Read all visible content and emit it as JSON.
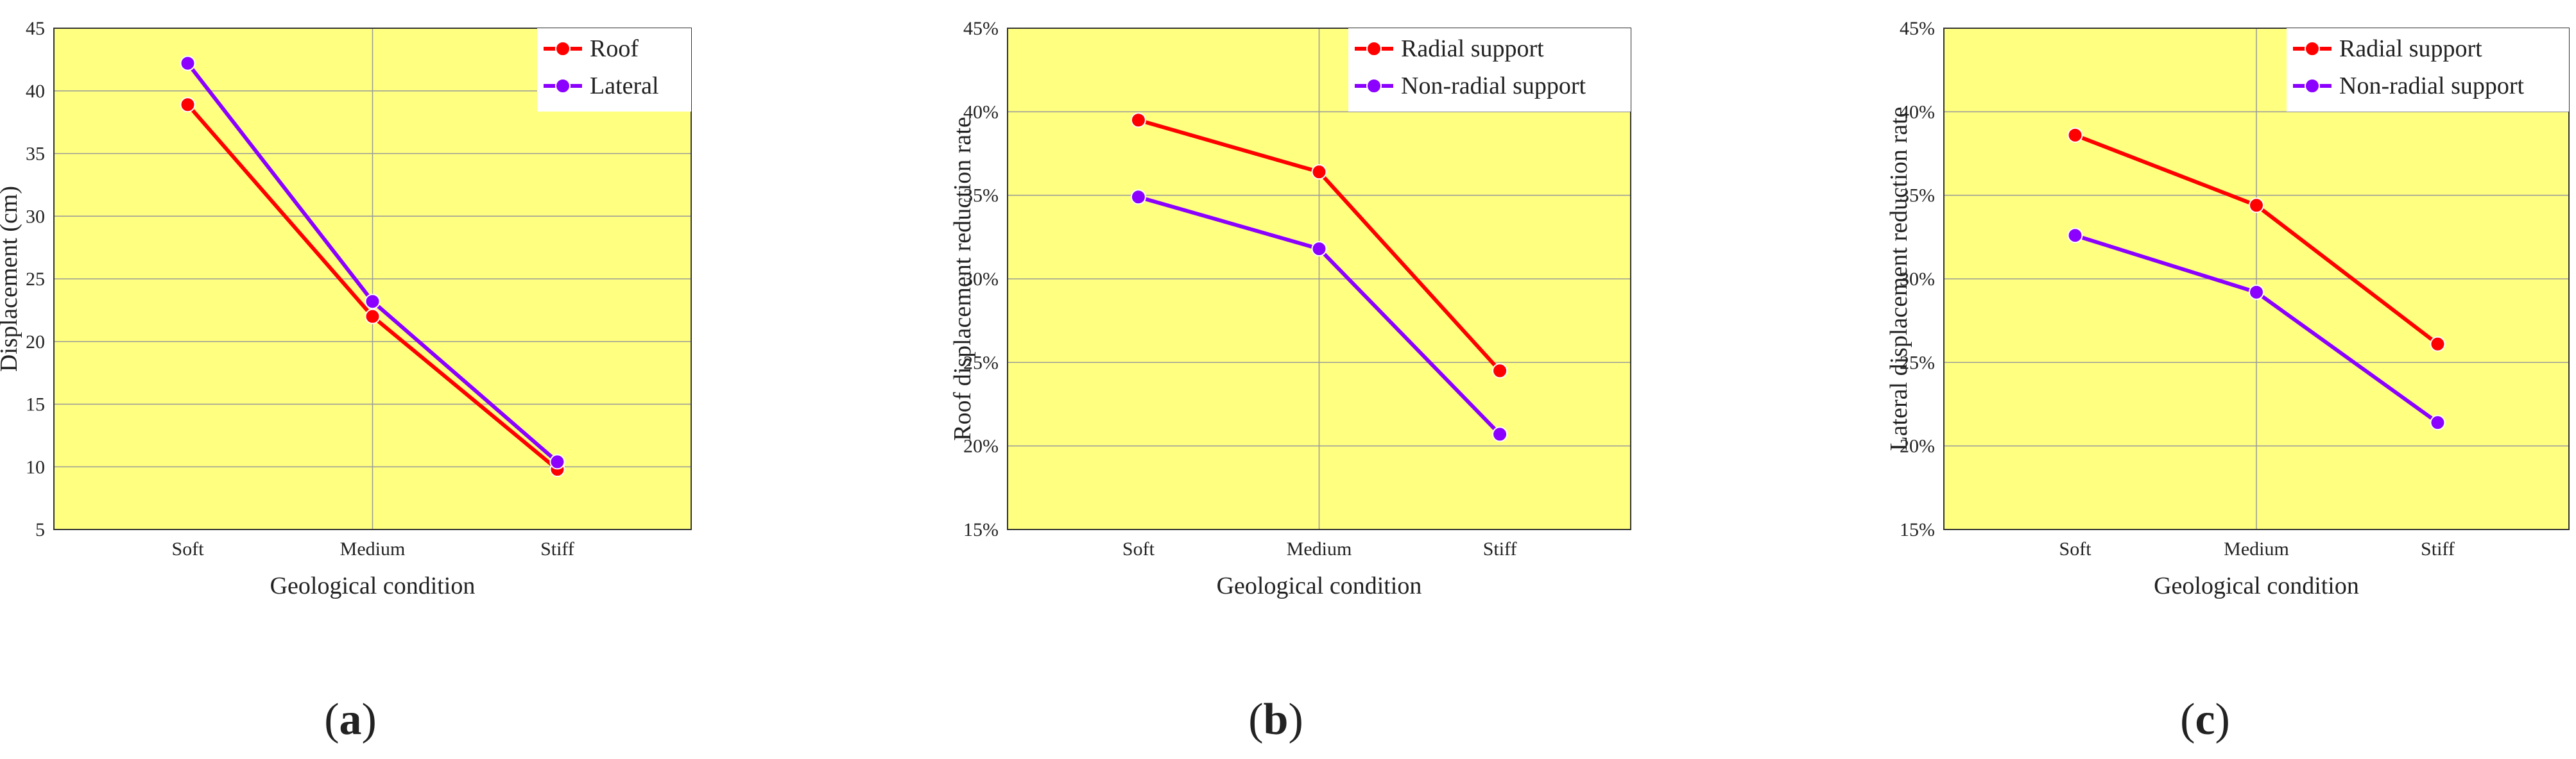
{
  "figure": {
    "panels": [
      {
        "caption_letter": "a",
        "background": "#FFFF80"
      },
      {
        "caption_letter": "b",
        "background": "#FFFF80"
      },
      {
        "caption_letter": "c",
        "background": "#FFFF80"
      }
    ],
    "caption_open": "(",
    "caption_close": ")"
  },
  "chart_data": [
    {
      "type": "line",
      "title": "",
      "xlabel": "Geological condition",
      "ylabel": "Displacement (cm)",
      "categories": [
        "Soft",
        "Medium",
        "Stiff"
      ],
      "ylim": [
        5,
        45
      ],
      "yticks": [
        5,
        10,
        15,
        20,
        25,
        30,
        35,
        40,
        45
      ],
      "ytick_labels": [
        "5",
        "10",
        "15",
        "20",
        "25",
        "30",
        "35",
        "40",
        "45"
      ],
      "grid": true,
      "legend_position": "top-right",
      "series": [
        {
          "name": "Roof",
          "color": "#FF0000",
          "values": [
            38.9,
            22.0,
            9.8
          ]
        },
        {
          "name": "Lateral",
          "color": "#8B00FF",
          "values": [
            42.2,
            23.2,
            10.4
          ]
        }
      ]
    },
    {
      "type": "line",
      "title": "",
      "xlabel": "Geological condition",
      "ylabel": "Roof displacement reduction rate",
      "categories": [
        "Soft",
        "Medium",
        "Stiff"
      ],
      "ylim": [
        15,
        45
      ],
      "yticks": [
        15,
        20,
        25,
        30,
        35,
        40,
        45
      ],
      "ytick_labels": [
        "15%",
        "20%",
        "25%",
        "30%",
        "35%",
        "40%",
        "45%"
      ],
      "grid": true,
      "legend_position": "top-right",
      "series": [
        {
          "name": "Radial support",
          "color": "#FF0000",
          "values": [
            39.5,
            36.4,
            24.5
          ]
        },
        {
          "name": "Non-radial support",
          "color": "#8B00FF",
          "values": [
            34.9,
            31.8,
            20.7
          ]
        }
      ]
    },
    {
      "type": "line",
      "title": "",
      "xlabel": "Geological condition",
      "ylabel": "Lateral displacement reduction rate",
      "categories": [
        "Soft",
        "Medium",
        "Stiff"
      ],
      "ylim": [
        15,
        45
      ],
      "yticks": [
        15,
        20,
        25,
        30,
        35,
        40,
        45
      ],
      "ytick_labels": [
        "15%",
        "20%",
        "25%",
        "30%",
        "35%",
        "40%",
        "45%"
      ],
      "grid": true,
      "legend_position": "top-right",
      "series": [
        {
          "name": "Radial support",
          "color": "#FF0000",
          "values": [
            38.6,
            34.4,
            26.1
          ]
        },
        {
          "name": "Non-radial support",
          "color": "#8B00FF",
          "values": [
            32.6,
            29.2,
            21.4
          ]
        }
      ]
    }
  ]
}
